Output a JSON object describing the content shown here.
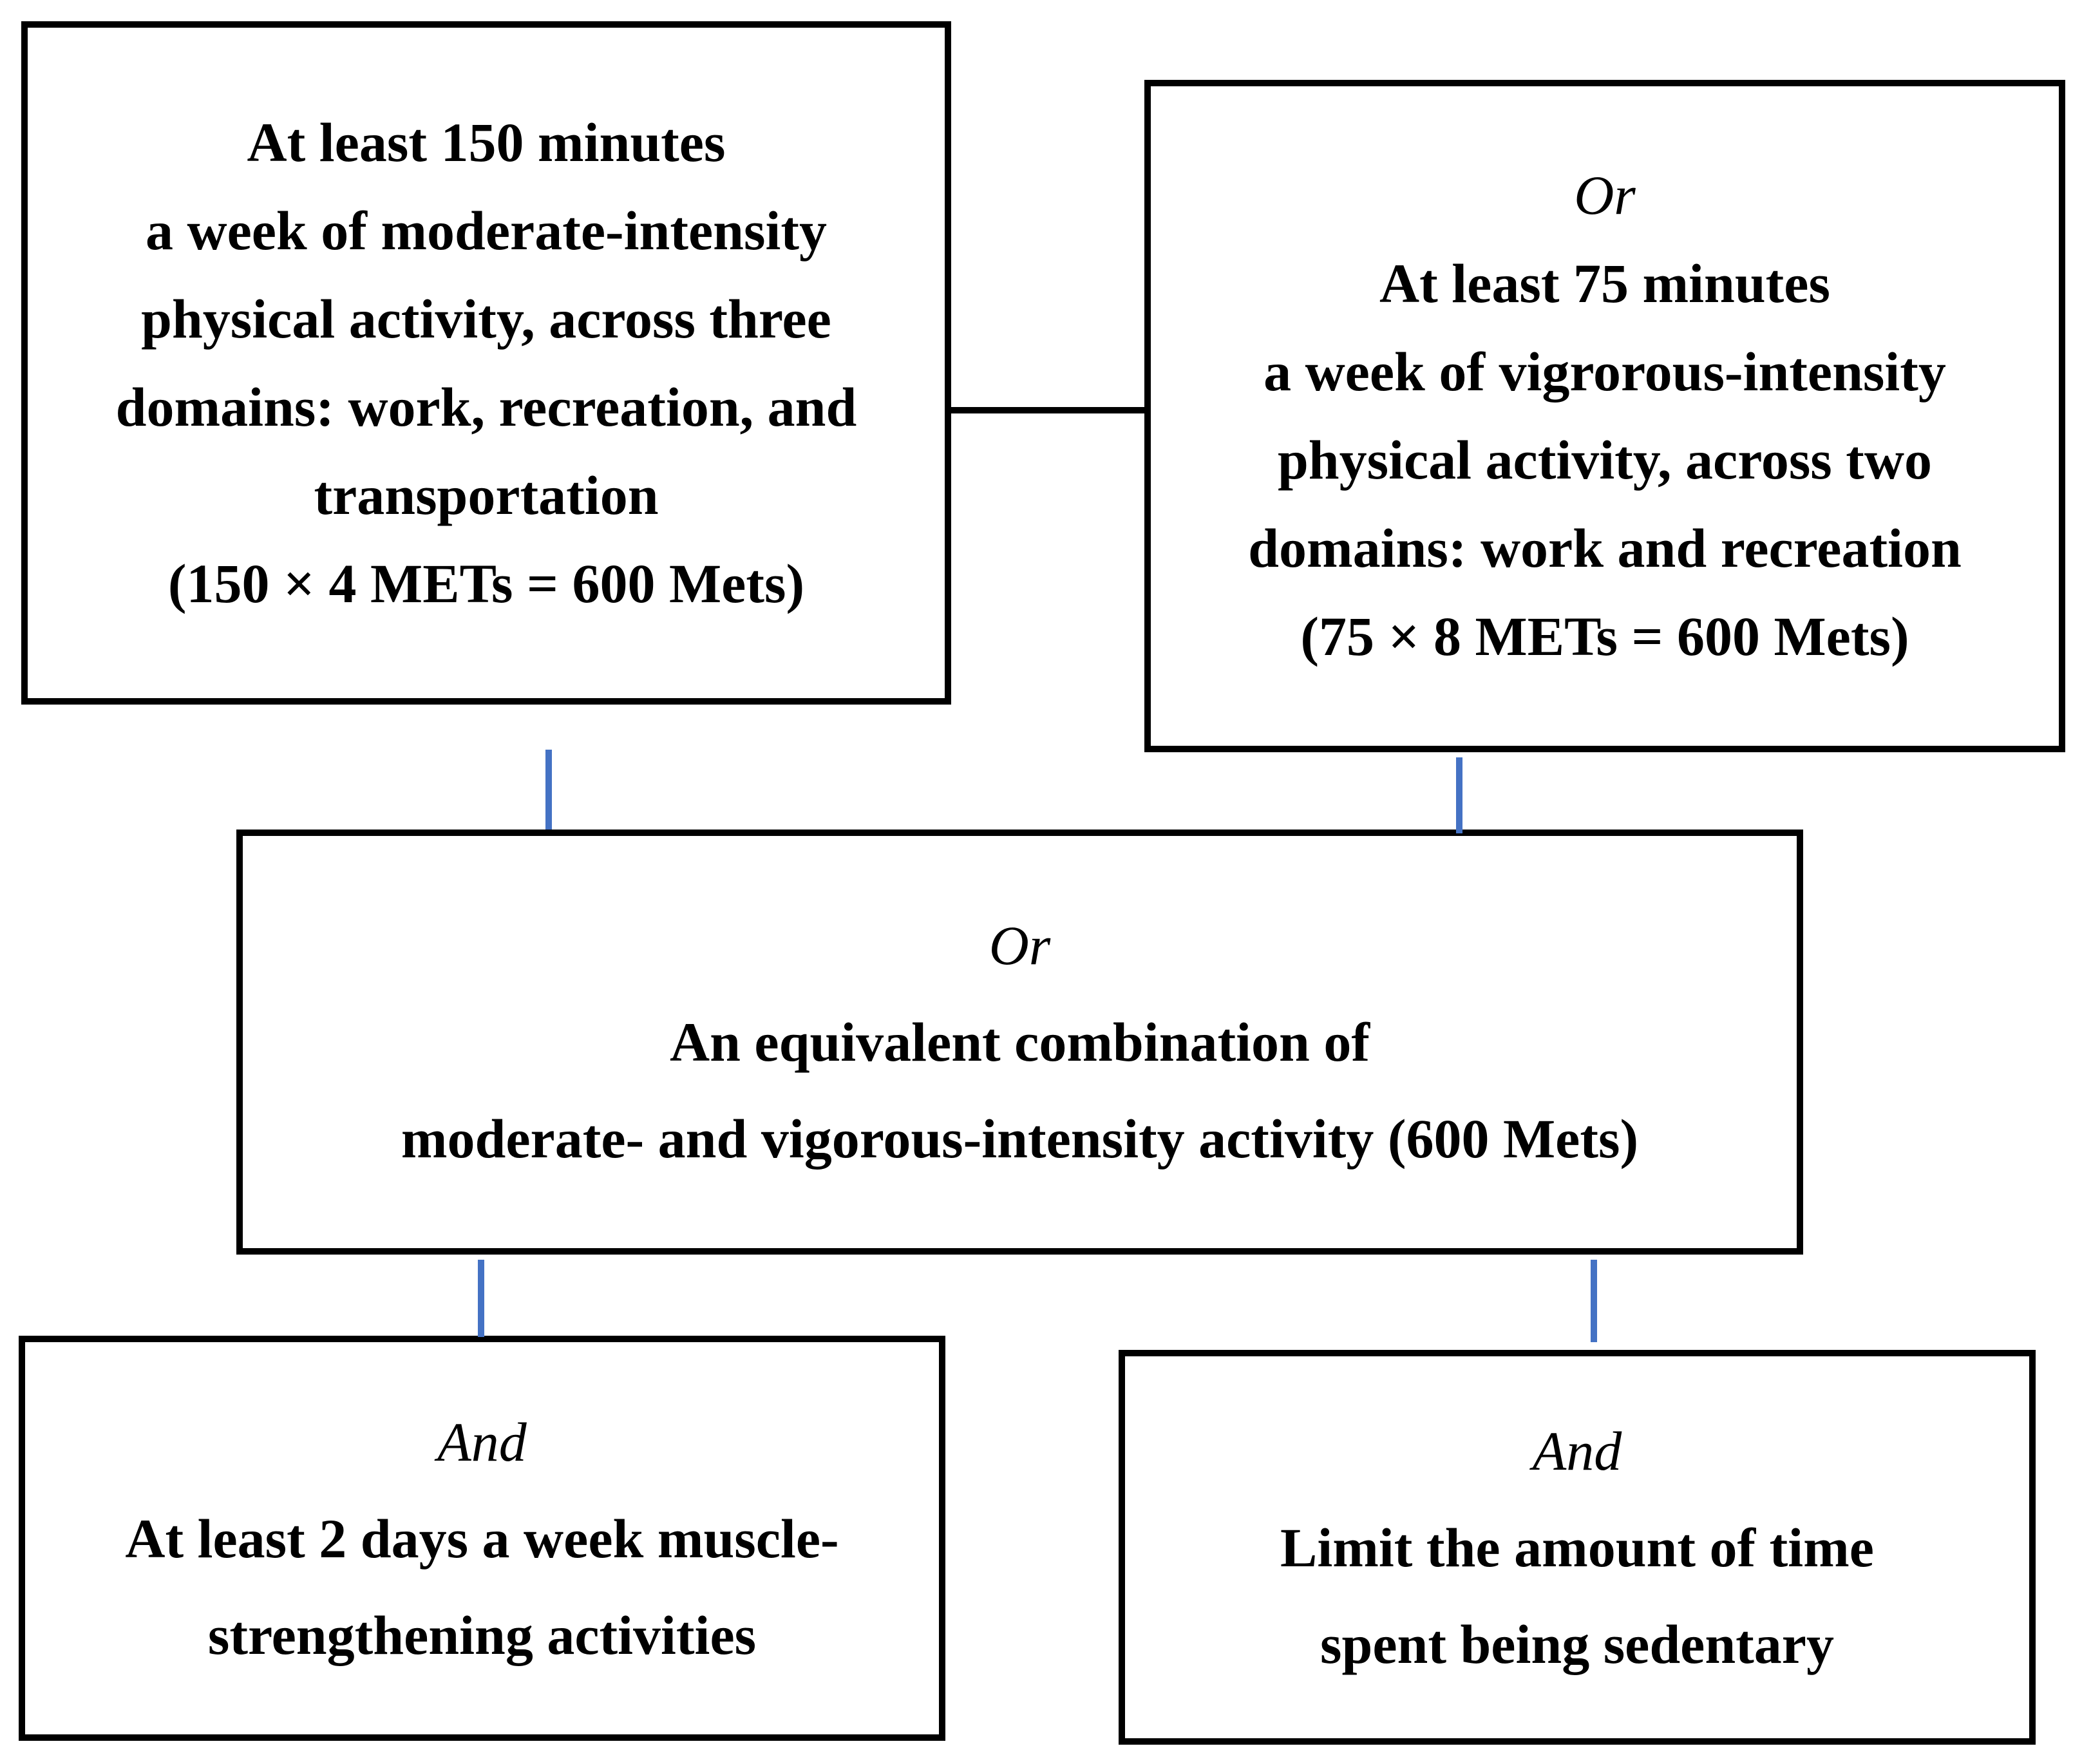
{
  "figure": {
    "connector_color": "#4472C4",
    "border_color": "#000000",
    "boxes": {
      "top_left": {
        "lines": [
          "At least 150 minutes",
          "a week of moderate-intensity",
          "physical activity, across three",
          "domains: work, recreation, and",
          "transportation",
          "(150 × 4 METs = 600 Mets)"
        ]
      },
      "top_right": {
        "qualifier": "Or",
        "lines": [
          "At least 75 minutes",
          "a week of vigrorous-intensity",
          "physical activity, across two",
          "domains: work and recreation",
          "(75 × 8 METs = 600 Mets)"
        ]
      },
      "middle": {
        "qualifier": "Or",
        "lines": [
          "An equivalent combination of",
          "moderate- and vigorous-intensity activity (600 Mets)"
        ]
      },
      "bottom_left": {
        "qualifier": "And",
        "lines": [
          "At least 2 days a week muscle-",
          "strengthening activities"
        ]
      },
      "bottom_right": {
        "qualifier": "And",
        "lines": [
          "Limit the amount of time",
          "spent being sedentary"
        ]
      }
    }
  }
}
